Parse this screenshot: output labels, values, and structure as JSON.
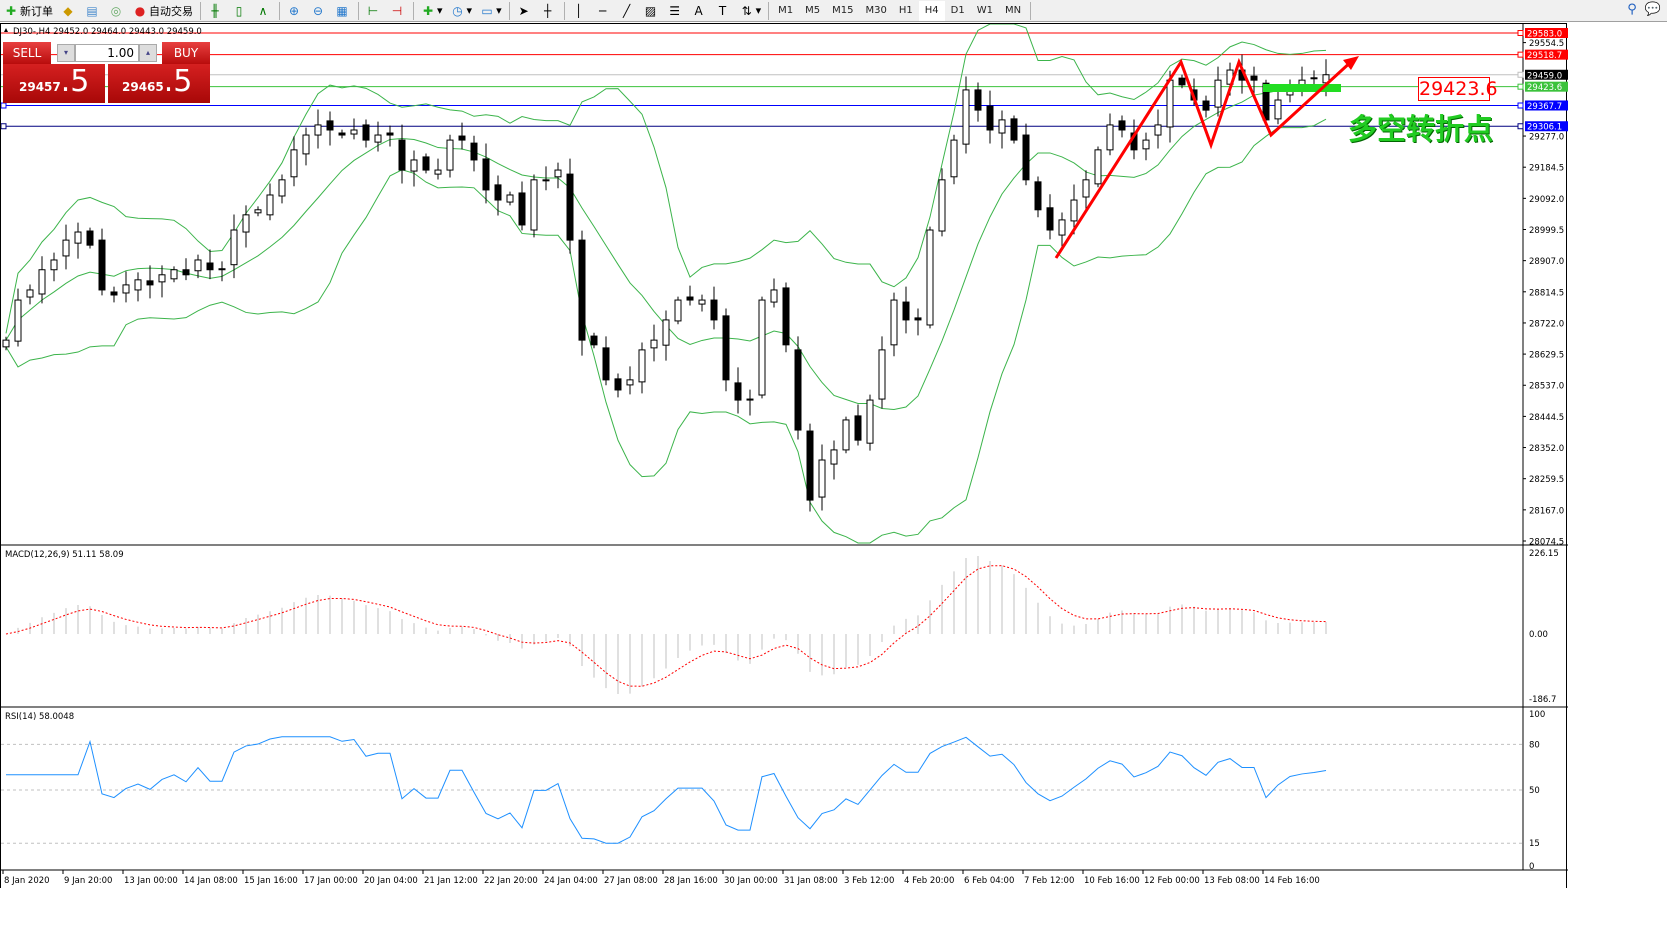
{
  "toolbar": {
    "new_order": "新订单",
    "auto_trading": "自动交易",
    "icons": [
      "new-order-icon",
      "market-watch-icon",
      "data-window-icon",
      "navigator-icon",
      "auto-trading-icon",
      "bar-chart-icon",
      "candlestick-icon",
      "line-chart-icon",
      "zoom-in-icon",
      "zoom-out-icon",
      "tile-windows-icon",
      "chart-shift-icon",
      "autoscroll-icon",
      "indicators-icon",
      "periods-icon",
      "templates-icon",
      "cursor-icon",
      "crosshair-icon",
      "vertical-line-icon",
      "horizontal-line-icon",
      "trendline-icon",
      "fibonacci-icon",
      "fibo-lines-icon",
      "text-icon",
      "text-label-icon",
      "arrows-icon"
    ],
    "timeframes": [
      "M1",
      "M5",
      "M15",
      "M30",
      "H1",
      "H4",
      "D1",
      "W1",
      "MN"
    ],
    "active_timeframe": "H4"
  },
  "chart": {
    "header": "DJ30-,H4  29452.0 29464.0 29443.0 29459.0",
    "annotation_text": "多空转折点",
    "annotation_price_label": "29423.6",
    "colors": {
      "bg": "#ffffff",
      "bull": "#ffffff",
      "bear": "#000000",
      "bands": "#3cb44b",
      "macd": "#c0c0c0",
      "signal": "#ff0000",
      "rsi": "#1e90ff",
      "arrow": "#ff0000",
      "annotation": "#22cc22"
    },
    "closes": [
      28671,
      28790,
      28820,
      28880,
      28909,
      28968,
      28992,
      28953,
      28820,
      28805,
      28835,
      28850,
      28835,
      28865,
      28880,
      28865,
      28909,
      28880,
      28880,
      28998,
      29043,
      29058,
      29102,
      29147,
      29236,
      29280,
      29310,
      29295,
      29280,
      29295,
      29265,
      29280,
      29280,
      29176,
      29206,
      29176,
      29176,
      29265,
      29265,
      29206,
      29117,
      29087,
      29102,
      29013,
      29147,
      29147,
      29176,
      28968,
      28671,
      28657,
      28553,
      28523,
      28553,
      28642,
      28671,
      28731,
      28790,
      28790,
      28790,
      28731,
      28553,
      28493,
      28493,
      28790,
      28820,
      28657,
      28404,
      28196,
      28315,
      28345,
      28434,
      28374,
      28493,
      28642,
      28790,
      28731,
      28731,
      28998,
      29147,
      29265,
      29414,
      29354,
      29295,
      29325,
      29265,
      29147,
      29058,
      28998,
      29028,
      29087,
      29147,
      29236,
      29310,
      29295,
      29236,
      29265,
      29310,
      29443,
      29429,
      29384,
      29354,
      29443,
      29473,
      29443,
      29443,
      29325,
      29384,
      29429,
      29443,
      29450,
      29459
    ]
  },
  "trade_panel": {
    "sell_label": "SELL",
    "buy_label": "BUY",
    "lot": "1.00",
    "sell_price_main": "29457",
    "sell_price_big": ".5",
    "buy_price_main": "29465",
    "buy_price_big": ".5"
  },
  "price_axis": {
    "ticks": [
      "29554.5",
      "29277.0",
      "29184.5",
      "29092.0",
      "28999.5",
      "28907.0",
      "28814.5",
      "28722.0",
      "28629.5",
      "28537.0",
      "28444.5",
      "28352.0",
      "28259.5",
      "28167.0",
      "28074.5"
    ],
    "levels": [
      {
        "label": "29583.0",
        "color": "#ff0000"
      },
      {
        "label": "29518.7",
        "color": "#ff0000"
      },
      {
        "label": "29459.0",
        "color": "#000000"
      },
      {
        "label": "29423.6",
        "color": "#3cc23c"
      },
      {
        "label": "29367.7",
        "color": "#0000ff"
      },
      {
        "label": "29306.1",
        "color": "#0000ff"
      }
    ]
  },
  "macd": {
    "label": "MACD(12,26,9) 51.11 58.09",
    "ticks": [
      "226.15",
      "0.00",
      "-186.7"
    ]
  },
  "rsi": {
    "label": "RSI(14) 58.0048",
    "ticks": [
      "100",
      "80",
      "50",
      "15",
      "0"
    ]
  },
  "time_axis": [
    "8 Jan 2020",
    "9 Jan 20:00",
    "13 Jan 00:00",
    "14 Jan 08:00",
    "15 Jan 16:00",
    "17 Jan 00:00",
    "20 Jan 04:00",
    "21 Jan 12:00",
    "22 Jan 20:00",
    "24 Jan 04:00",
    "27 Jan 08:00",
    "28 Jan 16:00",
    "30 Jan 00:00",
    "31 Jan 08:00",
    "3 Feb 12:00",
    "4 Feb 20:00",
    "6 Feb 04:00",
    "7 Feb 12:00",
    "10 Feb 16:00",
    "12 Feb 00:00",
    "13 Feb 08:00",
    "14 Feb 16:00"
  ]
}
